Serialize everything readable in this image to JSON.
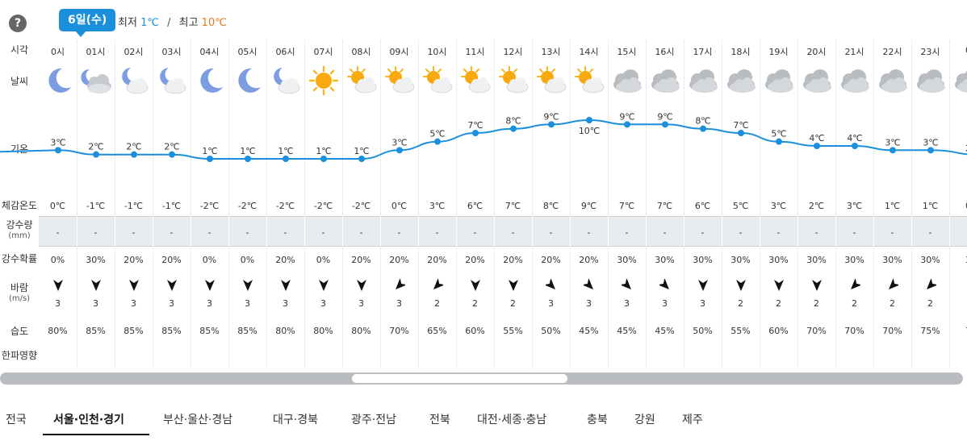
{
  "header": {
    "help_glyph": "?",
    "date": "6일(수)",
    "min_label": "최저",
    "min_value": "1℃",
    "separator": "/",
    "max_label": "최고",
    "max_value": "10℃"
  },
  "row_labels": {
    "time": "시각",
    "weather": "날씨",
    "temperature": "기온",
    "feels_like": "체감온도",
    "precip_amount": "강수량",
    "precip_amount_unit": "(mm)",
    "precip_prob": "강수확률",
    "wind": "바람",
    "wind_unit": "(m/s)",
    "humidity": "습도",
    "cold_index": "한파영향"
  },
  "hours": [
    "0시",
    "01시",
    "02시",
    "03시",
    "04시",
    "05시",
    "06시",
    "07시",
    "08시",
    "09시",
    "10시",
    "11시",
    "12시",
    "13시",
    "14시",
    "15시",
    "16시",
    "17시",
    "18시",
    "19시",
    "20시",
    "21시",
    "22시",
    "23시",
    "0"
  ],
  "weather_icons": [
    "moon-icon",
    "partly-cloudy-night-cloud-icon",
    "partly-cloudy-night-icon",
    "partly-cloudy-night-icon",
    "moon-icon",
    "moon-icon",
    "partly-cloudy-night-icon",
    "sun-icon",
    "partly-cloudy-day-icon",
    "partly-cloudy-day-icon",
    "partly-cloudy-day-icon",
    "partly-cloudy-day-icon",
    "partly-cloudy-day-icon",
    "partly-cloudy-day-icon",
    "partly-cloudy-day-icon",
    "cloudy-icon",
    "cloudy-icon",
    "cloudy-icon",
    "cloudy-icon",
    "cloudy-icon",
    "cloudy-icon",
    "cloudy-icon",
    "cloudy-icon",
    "cloudy-icon",
    "cloudy-icon"
  ],
  "chart_data": {
    "type": "line",
    "x": [
      "0시",
      "01시",
      "02시",
      "03시",
      "04시",
      "05시",
      "06시",
      "07시",
      "08시",
      "09시",
      "10시",
      "11시",
      "12시",
      "13시",
      "14시",
      "15시",
      "16시",
      "17시",
      "18시",
      "19시",
      "20시",
      "21시",
      "22시",
      "23시"
    ],
    "series": [
      {
        "values": [
          3,
          2,
          2,
          2,
          1,
          1,
          1,
          1,
          1,
          3,
          5,
          7,
          8,
          9,
          10,
          9,
          9,
          8,
          7,
          5,
          4,
          4,
          3,
          3
        ],
        "labels": [
          "3℃",
          "2℃",
          "2℃",
          "2℃",
          "1℃",
          "1℃",
          "1℃",
          "1℃",
          "1℃",
          "3℃",
          "5℃",
          "7℃",
          "8℃",
          "9℃",
          "10℃",
          "9℃",
          "9℃",
          "8℃",
          "7℃",
          "5℃",
          "4℃",
          "4℃",
          "3℃",
          "3℃"
        ]
      }
    ],
    "ylim": [
      1,
      10
    ],
    "color": "#1a8fdc",
    "continues_right_label": "2"
  },
  "feels_like": [
    "0℃",
    "-1℃",
    "-1℃",
    "-1℃",
    "-2℃",
    "-2℃",
    "-2℃",
    "-2℃",
    "-2℃",
    "0℃",
    "3℃",
    "6℃",
    "7℃",
    "8℃",
    "9℃",
    "7℃",
    "7℃",
    "6℃",
    "5℃",
    "3℃",
    "2℃",
    "3℃",
    "1℃",
    "1℃",
    "0"
  ],
  "precip_amount": [
    "-",
    "-",
    "-",
    "-",
    "-",
    "-",
    "-",
    "-",
    "-",
    "-",
    "-",
    "-",
    "-",
    "-",
    "-",
    "-",
    "-",
    "-",
    "-",
    "-",
    "-",
    "-",
    "-",
    "-",
    "-"
  ],
  "precip_prob": [
    "0%",
    "30%",
    "20%",
    "20%",
    "0%",
    "0%",
    "20%",
    "0%",
    "20%",
    "20%",
    "20%",
    "20%",
    "20%",
    "20%",
    "20%",
    "30%",
    "30%",
    "30%",
    "30%",
    "30%",
    "30%",
    "30%",
    "30%",
    "30%",
    "3"
  ],
  "wind": {
    "directions": [
      "south",
      "south",
      "south",
      "south",
      "south",
      "south",
      "south",
      "south",
      "south",
      "southwest",
      "southwest",
      "south",
      "south",
      "southeast",
      "southeast",
      "southeast",
      "southeast",
      "south",
      "south",
      "south",
      "south",
      "southwest",
      "southwest",
      "southwest",
      ""
    ],
    "speeds": [
      "3",
      "3",
      "3",
      "3",
      "3",
      "3",
      "3",
      "3",
      "3",
      "3",
      "2",
      "2",
      "2",
      "3",
      "3",
      "3",
      "3",
      "3",
      "2",
      "2",
      "2",
      "2",
      "2",
      "2",
      ""
    ]
  },
  "humidity": [
    "80%",
    "85%",
    "85%",
    "85%",
    "85%",
    "85%",
    "80%",
    "80%",
    "80%",
    "70%",
    "65%",
    "60%",
    "55%",
    "50%",
    "45%",
    "45%",
    "45%",
    "50%",
    "55%",
    "60%",
    "70%",
    "70%",
    "70%",
    "75%",
    "7"
  ],
  "tabs": [
    "전국",
    "서울·인천·경기",
    "부산·울산·경남",
    "대구·경북",
    "광주·전남",
    "전북",
    "대전·세종·충남",
    "충북",
    "강원",
    "제주"
  ],
  "active_tab": 1,
  "colors": {
    "accent": "#1a8fdc",
    "max_temp": "#e07b1a"
  }
}
